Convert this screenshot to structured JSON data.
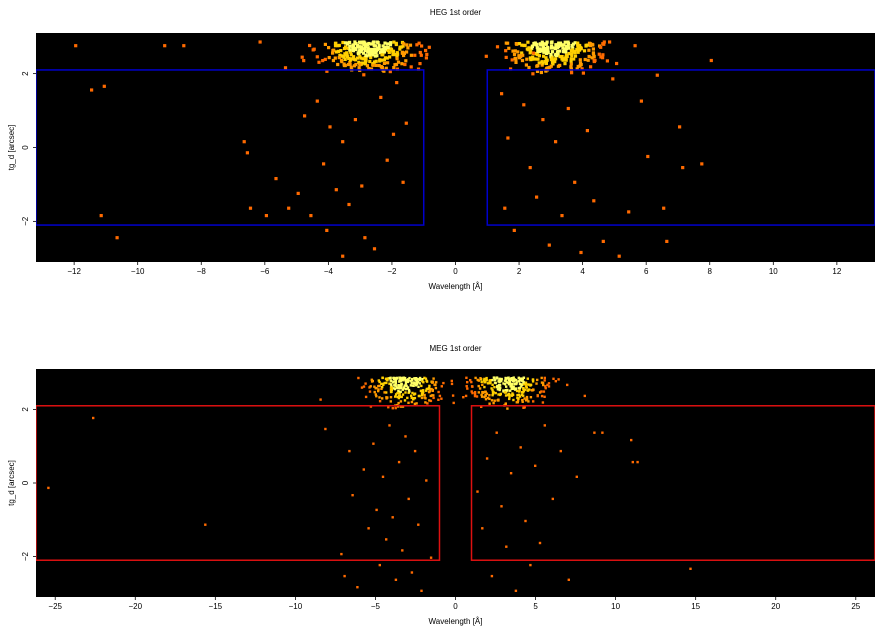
{
  "chart_data": [
    {
      "type": "heatmap",
      "title": "HEG 1st order",
      "xlabel": "Wavelength [Å]",
      "ylabel": "tg_d [arcsec]",
      "xlim": [
        -13.2,
        13.2
      ],
      "ylim": [
        -3.1,
        3.1
      ],
      "xticks": [
        -12,
        -10,
        -8,
        -6,
        -4,
        -2,
        0,
        2,
        4,
        6,
        8,
        10,
        12
      ],
      "yticks": [
        -2,
        0,
        2
      ],
      "background": "#000000",
      "region_color": "#0000cc",
      "regions": [
        {
          "x": [
            -13.2,
            -1.0
          ],
          "y": [
            -2.1,
            2.1
          ]
        },
        {
          "x": [
            1.0,
            13.2
          ],
          "y": [
            -2.1,
            2.1
          ]
        }
      ],
      "hot_spots": [
        {
          "x": -2.8,
          "y": 2.9,
          "intensity": "high"
        },
        {
          "x": 3.0,
          "y": 2.9,
          "intensity": "high"
        }
      ],
      "scattered_events": [
        {
          "x": -12.0,
          "y": 2.8
        },
        {
          "x": -11.5,
          "y": 1.6
        },
        {
          "x": -11.1,
          "y": 1.7
        },
        {
          "x": -9.2,
          "y": 2.8
        },
        {
          "x": -8.6,
          "y": 2.8
        },
        {
          "x": -11.2,
          "y": -1.8
        },
        {
          "x": -10.7,
          "y": -2.4
        },
        {
          "x": -6.7,
          "y": 0.2
        },
        {
          "x": -6.6,
          "y": -0.1
        },
        {
          "x": -6.5,
          "y": -1.6
        },
        {
          "x": -6.0,
          "y": -1.8
        },
        {
          "x": -5.7,
          "y": -0.8
        },
        {
          "x": -5.3,
          "y": -1.6
        },
        {
          "x": -5.0,
          "y": -1.2
        },
        {
          "x": -4.8,
          "y": 0.9
        },
        {
          "x": -4.6,
          "y": -1.8
        },
        {
          "x": -4.4,
          "y": 1.3
        },
        {
          "x": -4.2,
          "y": -0.4
        },
        {
          "x": -4.0,
          "y": 0.6
        },
        {
          "x": -3.8,
          "y": -1.1
        },
        {
          "x": -3.6,
          "y": 0.2
        },
        {
          "x": -3.4,
          "y": -1.5
        },
        {
          "x": -3.2,
          "y": 0.8
        },
        {
          "x": -3.0,
          "y": -1.0
        },
        {
          "x": -2.9,
          "y": -2.4
        },
        {
          "x": -2.6,
          "y": -2.7
        },
        {
          "x": -2.4,
          "y": 1.4
        },
        {
          "x": -2.2,
          "y": -0.3
        },
        {
          "x": -2.0,
          "y": 0.4
        },
        {
          "x": -1.7,
          "y": -0.9
        },
        {
          "x": -1.6,
          "y": 0.7
        },
        {
          "x": -3.6,
          "y": -2.9
        },
        {
          "x": -4.1,
          "y": -2.2
        },
        {
          "x": 1.4,
          "y": 1.5
        },
        {
          "x": 1.6,
          "y": 0.3
        },
        {
          "x": 1.5,
          "y": -1.6
        },
        {
          "x": 1.8,
          "y": -2.2
        },
        {
          "x": 2.1,
          "y": 1.2
        },
        {
          "x": 2.3,
          "y": -0.5
        },
        {
          "x": 2.5,
          "y": -1.3
        },
        {
          "x": 2.7,
          "y": 0.8
        },
        {
          "x": 2.9,
          "y": -2.6
        },
        {
          "x": 3.1,
          "y": 0.2
        },
        {
          "x": 3.3,
          "y": -1.8
        },
        {
          "x": 3.5,
          "y": 1.1
        },
        {
          "x": 3.7,
          "y": -0.9
        },
        {
          "x": 3.9,
          "y": -2.8
        },
        {
          "x": 4.1,
          "y": 0.5
        },
        {
          "x": 4.3,
          "y": -1.4
        },
        {
          "x": 4.6,
          "y": -2.5
        },
        {
          "x": 4.9,
          "y": 1.9
        },
        {
          "x": 5.1,
          "y": -2.9
        },
        {
          "x": 5.4,
          "y": -1.7
        },
        {
          "x": 5.6,
          "y": 2.8
        },
        {
          "x": 5.8,
          "y": 1.3
        },
        {
          "x": 6.0,
          "y": -0.2
        },
        {
          "x": 6.5,
          "y": -1.6
        },
        {
          "x": 6.6,
          "y": -2.5
        },
        {
          "x": 7.0,
          "y": 0.6
        },
        {
          "x": 7.1,
          "y": -0.5
        },
        {
          "x": 7.7,
          "y": -0.4
        },
        {
          "x": 8.0,
          "y": 2.4
        },
        {
          "x": 6.3,
          "y": 2.0
        },
        {
          "x": 4.8,
          "y": 2.9
        },
        {
          "x": 2.4,
          "y": 2.6
        },
        {
          "x": -1.9,
          "y": 1.8
        },
        {
          "x": -4.4,
          "y": 2.5
        },
        {
          "x": -5.4,
          "y": 2.2
        },
        {
          "x": -6.2,
          "y": 2.9
        }
      ]
    },
    {
      "type": "heatmap",
      "title": "MEG 1st order",
      "xlabel": "Wavelength [Å]",
      "ylabel": "tg_d [arcsec]",
      "xlim": [
        -26.2,
        26.2
      ],
      "ylim": [
        -3.1,
        3.1
      ],
      "xticks": [
        -25,
        -20,
        -15,
        -10,
        -5,
        0,
        5,
        10,
        15,
        20,
        25
      ],
      "yticks": [
        -2,
        0,
        2
      ],
      "background": "#000000",
      "region_color": "#dd1111",
      "regions": [
        {
          "x": [
            -26.2,
            -1.0
          ],
          "y": [
            -2.1,
            2.1
          ]
        },
        {
          "x": [
            1.0,
            26.2
          ],
          "y": [
            -2.1,
            2.1
          ]
        }
      ],
      "hot_spots": [
        {
          "x": -3.2,
          "y": 2.9,
          "intensity": "high"
        },
        {
          "x": 3.2,
          "y": 2.9,
          "intensity": "high"
        }
      ],
      "scattered_events": [
        {
          "x": -25.5,
          "y": -0.1
        },
        {
          "x": -22.7,
          "y": 1.8
        },
        {
          "x": -15.7,
          "y": -1.1
        },
        {
          "x": -8.2,
          "y": 1.5
        },
        {
          "x": -7.2,
          "y": -1.9
        },
        {
          "x": -7.0,
          "y": -2.5
        },
        {
          "x": -6.7,
          "y": 0.9
        },
        {
          "x": -6.5,
          "y": -0.3
        },
        {
          "x": -6.2,
          "y": -2.8
        },
        {
          "x": -5.8,
          "y": 0.4
        },
        {
          "x": -5.5,
          "y": -1.2
        },
        {
          "x": -5.2,
          "y": 1.1
        },
        {
          "x": -5.0,
          "y": -0.7
        },
        {
          "x": -4.8,
          "y": -2.2
        },
        {
          "x": -4.6,
          "y": 0.2
        },
        {
          "x": -4.4,
          "y": -1.5
        },
        {
          "x": -4.2,
          "y": 1.6
        },
        {
          "x": -4.0,
          "y": -0.9
        },
        {
          "x": -3.8,
          "y": -2.6
        },
        {
          "x": -3.6,
          "y": 0.6
        },
        {
          "x": -3.4,
          "y": -1.8
        },
        {
          "x": -3.2,
          "y": 1.3
        },
        {
          "x": -3.0,
          "y": -0.4
        },
        {
          "x": -2.8,
          "y": -2.4
        },
        {
          "x": -2.6,
          "y": 0.9
        },
        {
          "x": -2.4,
          "y": -1.1
        },
        {
          "x": -2.2,
          "y": -2.9
        },
        {
          "x": -1.9,
          "y": 0.1
        },
        {
          "x": -1.6,
          "y": -2.0
        },
        {
          "x": 1.3,
          "y": -0.2
        },
        {
          "x": 1.6,
          "y": -1.2
        },
        {
          "x": 1.9,
          "y": 0.7
        },
        {
          "x": 2.2,
          "y": -2.5
        },
        {
          "x": 2.5,
          "y": 1.4
        },
        {
          "x": 2.8,
          "y": -0.6
        },
        {
          "x": 3.1,
          "y": -1.7
        },
        {
          "x": 3.4,
          "y": 0.3
        },
        {
          "x": 3.7,
          "y": -2.9
        },
        {
          "x": 4.0,
          "y": 1.0
        },
        {
          "x": 4.3,
          "y": -1.0
        },
        {
          "x": 4.6,
          "y": -2.2
        },
        {
          "x": 4.9,
          "y": 0.5
        },
        {
          "x": 5.2,
          "y": -1.6
        },
        {
          "x": 5.5,
          "y": 1.6
        },
        {
          "x": 6.0,
          "y": -0.4
        },
        {
          "x": 6.5,
          "y": 0.9
        },
        {
          "x": 7.0,
          "y": -2.6
        },
        {
          "x": 7.5,
          "y": 0.2
        },
        {
          "x": 8.6,
          "y": 1.4
        },
        {
          "x": 9.1,
          "y": 1.4
        },
        {
          "x": 10.9,
          "y": 1.2
        },
        {
          "x": 11.0,
          "y": 0.6
        },
        {
          "x": 11.3,
          "y": 0.6
        },
        {
          "x": 14.6,
          "y": -2.3
        },
        {
          "x": 8.0,
          "y": 2.4
        },
        {
          "x": -8.5,
          "y": 2.3
        },
        {
          "x": 6.9,
          "y": 2.7
        }
      ]
    }
  ]
}
